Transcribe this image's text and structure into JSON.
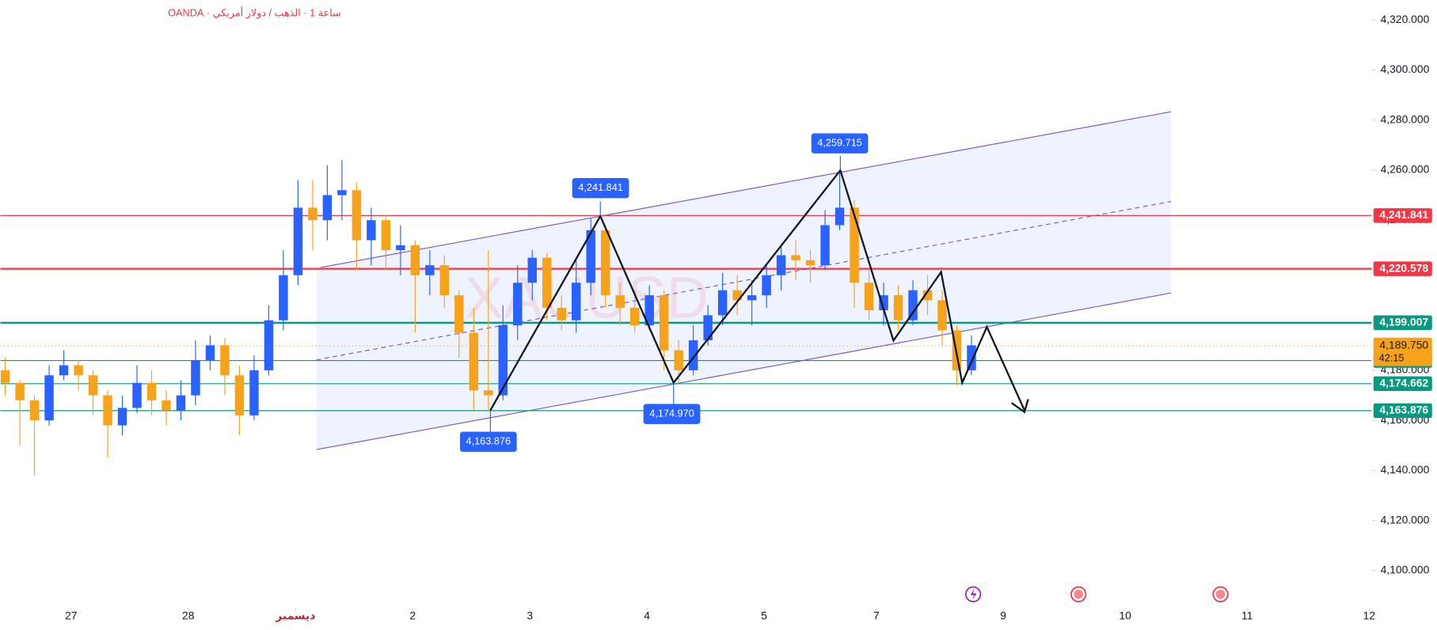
{
  "chart_data": {
    "type": "candlestick",
    "title": "ساعة 1 · الذهب / دولار أمريكي · OANDA",
    "watermark": "XAUUSD",
    "up_color": "#2962ff",
    "down_color": "#f7a21b",
    "xlim": [
      -1,
      280
    ],
    "ylim": [
      4085,
      4328
    ],
    "yticks": [
      {
        "value": 4100,
        "label": "4,100.000"
      },
      {
        "value": 4120,
        "label": "4,120.000"
      },
      {
        "value": 4140,
        "label": "4,140.000"
      },
      {
        "value": 4160,
        "label": "4,160.000"
      },
      {
        "value": 4180,
        "label": "4,180.000"
      },
      {
        "value": 4200,
        "label": "4,200.000"
      },
      {
        "value": 4220,
        "label": "4,220.000"
      },
      {
        "value": 4240,
        "label": "4,240.000"
      },
      {
        "value": 4260,
        "label": "4,260.000"
      },
      {
        "value": 4280,
        "label": "4,280.000"
      },
      {
        "value": 4300,
        "label": "4,300.000"
      },
      {
        "value": 4320,
        "label": "4,320.000"
      }
    ],
    "xticks": [
      {
        "value": 13.5,
        "label": "27"
      },
      {
        "value": 37.5,
        "label": "28"
      },
      {
        "value": 59.5,
        "label": "ديسمبر"
      },
      {
        "value": 83.5,
        "label": "2"
      },
      {
        "value": 107.5,
        "label": "3"
      },
      {
        "value": 131.5,
        "label": "4"
      },
      {
        "value": 155.5,
        "label": "5"
      },
      {
        "value": 178.5,
        "label": "7"
      },
      {
        "value": 204.5,
        "label": "9"
      },
      {
        "value": 229.5,
        "label": "10"
      },
      {
        "value": 254.5,
        "label": "11"
      },
      {
        "value": 279.5,
        "label": "12"
      }
    ],
    "x": [
      0,
      3,
      6,
      9,
      12,
      15,
      18,
      21,
      24,
      27,
      30,
      33,
      36,
      39,
      42,
      45,
      48,
      51,
      54,
      57,
      60,
      63,
      66,
      69,
      72,
      75,
      78,
      81,
      84,
      87,
      90,
      93,
      96,
      99,
      102,
      105,
      108,
      111,
      114,
      117,
      120,
      123,
      126,
      129,
      132,
      135,
      138,
      141,
      144,
      147,
      150,
      153,
      156,
      159,
      162,
      165,
      168,
      171,
      174,
      177,
      180,
      183,
      186,
      189,
      192,
      195,
      198
    ],
    "open": [
      4180,
      4175,
      4168,
      4160,
      4178,
      4182,
      4178,
      4170,
      4158,
      4165,
      4175,
      4168,
      4164,
      4170,
      4184,
      4190,
      4178,
      4162,
      4180,
      4200,
      4218,
      4245,
      4240,
      4250,
      4252,
      4232,
      4240,
      4228,
      4230,
      4218,
      4222,
      4210,
      4195,
      4172,
      4170,
      4198,
      4215,
      4225,
      4205,
      4200,
      4215,
      4236,
      4210,
      4205,
      4198,
      4210,
      4188,
      4180,
      4192,
      4202,
      4212,
      4208,
      4210,
      4218,
      4226,
      4224,
      4222,
      4238,
      4245,
      4215,
      4204,
      4210,
      4200,
      4212,
      4208,
      4196,
      4180
    ],
    "high": [
      4185,
      4176,
      4170,
      4182,
      4188,
      4184,
      4180,
      4172,
      4170,
      4182,
      4180,
      4172,
      4176,
      4192,
      4194,
      4193,
      4182,
      4186,
      4206,
      4228,
      4256,
      4256,
      4262,
      4264,
      4255,
      4245,
      4242,
      4238,
      4232,
      4228,
      4226,
      4212,
      4205,
      4228,
      4206,
      4222,
      4228,
      4227,
      4210,
      4225,
      4241,
      4238,
      4215,
      4212,
      4214,
      4212,
      4192,
      4198,
      4206,
      4219,
      4218,
      4216,
      4222,
      4230,
      4232,
      4228,
      4244,
      4259.7,
      4248,
      4220,
      4215,
      4214,
      4216,
      4218,
      4212,
      4198,
      4194
    ],
    "low": [
      4170,
      4150,
      4138,
      4158,
      4176,
      4172,
      4162,
      4145,
      4154,
      4163,
      4162,
      4158,
      4160,
      4166,
      4180,
      4170,
      4154,
      4160,
      4178,
      4196,
      4214,
      4228,
      4232,
      4240,
      4220,
      4222,
      4220,
      4218,
      4195,
      4210,
      4205,
      4185,
      4164,
      4164,
      4168,
      4192,
      4208,
      4200,
      4196,
      4195,
      4210,
      4205,
      4198,
      4195,
      4196,
      4180,
      4175,
      4178,
      4190,
      4198,
      4202,
      4198,
      4205,
      4212,
      4216,
      4215,
      4220,
      4236,
      4205,
      4200,
      4198,
      4196,
      4198,
      4202,
      4190,
      4174,
      4178
    ],
    "close": [
      4175,
      4168,
      4160,
      4178,
      4182,
      4178,
      4170,
      4158,
      4165,
      4175,
      4168,
      4164,
      4170,
      4184,
      4190,
      4178,
      4162,
      4180,
      4200,
      4218,
      4245,
      4240,
      4250,
      4252,
      4232,
      4240,
      4228,
      4230,
      4218,
      4222,
      4210,
      4195,
      4172,
      4170,
      4198,
      4215,
      4225,
      4205,
      4200,
      4215,
      4236,
      4210,
      4205,
      4198,
      4210,
      4188,
      4180,
      4192,
      4202,
      4212,
      4208,
      4210,
      4218,
      4226,
      4224,
      4222,
      4238,
      4245,
      4215,
      4204,
      4210,
      4200,
      4212,
      4208,
      4196,
      4180,
      4190
    ],
    "levels": [
      {
        "value": 4241.841,
        "label": "4,241.841",
        "color": "#f23645",
        "width": 1
      },
      {
        "value": 4220.578,
        "label": "4,220.578",
        "color": "#f23645",
        "width": 2
      },
      {
        "value": 4199.007,
        "label": "4,199.007",
        "color": "#089981",
        "width": 2
      },
      {
        "value": 4183.907,
        "label": "4,183.907",
        "color": "#089981",
        "width": 1
      },
      {
        "value": 4174.662,
        "label": "4,174.662",
        "color": "#089981",
        "width": 1
      },
      {
        "value": 4163.876,
        "label": "4,163.876",
        "color": "#089981",
        "width": 1
      }
    ],
    "last_price": {
      "value": 4189.75,
      "label": "4,189.750",
      "countdown": "42:15",
      "color": "#f7a21b"
    },
    "annotations": [
      {
        "text": "4,163.876",
        "x": 99,
        "y": 4163.876,
        "position": "below"
      },
      {
        "text": "4,241.841",
        "x": 122,
        "y": 4241.841,
        "position": "above"
      },
      {
        "text": "4,174.970",
        "x": 136.6,
        "y": 4174.97,
        "position": "below"
      },
      {
        "text": "4,259.715",
        "x": 171,
        "y": 4259.715,
        "position": "above"
      }
    ]
  }
}
